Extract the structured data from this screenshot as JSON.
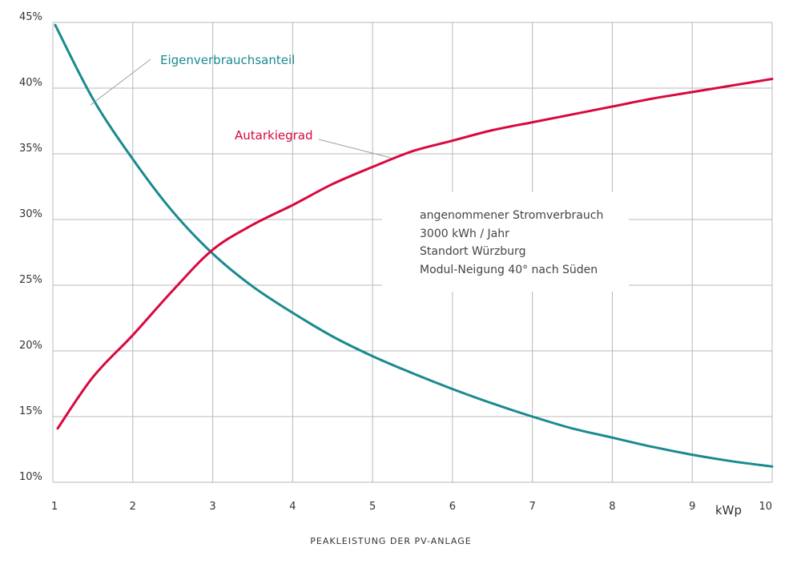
{
  "colors": {
    "teal": "#1a8a8f",
    "red": "#d9083d",
    "grid": "#b8b8b8",
    "leader": "#a0a0a0"
  },
  "chart_data": {
    "type": "line",
    "title": "",
    "xlabel": "PEAKLEISTUNG DER PV-ANLAGE",
    "x_unit": "kWp",
    "ylabel": "",
    "xlim": [
      1,
      10
    ],
    "ylim": [
      10,
      45
    ],
    "x_ticks": [
      "1",
      "2",
      "3",
      "4",
      "5",
      "6",
      "7",
      "8",
      "9",
      "10"
    ],
    "y_ticks": [
      "10%",
      "15%",
      "20%",
      "25%",
      "30%",
      "35%",
      "40%",
      "45%"
    ],
    "grid": true,
    "series": [
      {
        "name": "Eigenverbrauchsanteil",
        "color": "#1a8a8f",
        "x": [
          1.03,
          1.5,
          2,
          2.5,
          3,
          3.5,
          4,
          4.5,
          5,
          5.5,
          6,
          6.5,
          7,
          7.5,
          8,
          8.5,
          9,
          9.5,
          10
        ],
        "y": [
          44.8,
          39.2,
          34.6,
          30.6,
          27.4,
          24.9,
          22.9,
          21.1,
          19.6,
          18.3,
          17.1,
          16.0,
          15.0,
          14.1,
          13.4,
          12.7,
          12.1,
          11.6,
          11.2
        ]
      },
      {
        "name": "Autarkiegrad",
        "color": "#d9083d",
        "x": [
          1.06,
          1.5,
          2,
          2.5,
          3,
          3.5,
          4,
          4.5,
          5,
          5.5,
          6,
          6.5,
          7,
          7.5,
          8,
          8.5,
          9,
          9.5,
          10
        ],
        "y": [
          14.1,
          18.0,
          21.2,
          24.6,
          27.7,
          29.6,
          31.1,
          32.7,
          34.0,
          35.2,
          36.0,
          36.8,
          37.4,
          38.0,
          38.6,
          39.2,
          39.7,
          40.2,
          40.7
        ]
      }
    ],
    "annotations": {
      "box_lines": [
        "angenommener Stromverbrauch",
        "3000 kWh / Jahr",
        "Standort Würzburg",
        "Modul-Neigung 40° nach Süden"
      ]
    }
  }
}
